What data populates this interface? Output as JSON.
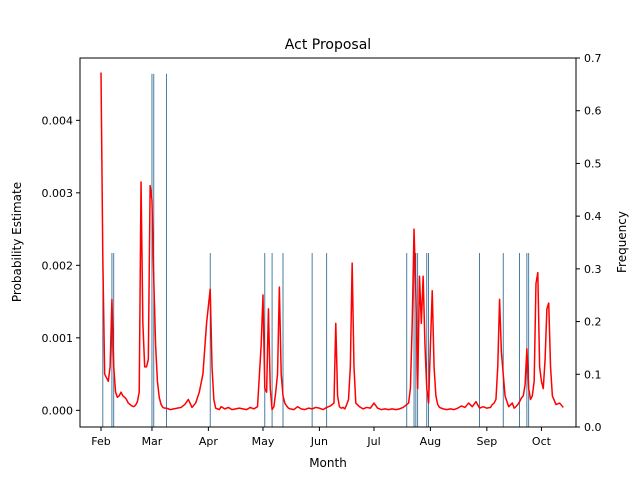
{
  "chart_data": {
    "type": "line",
    "title": "Act Proposal",
    "xlabel": "Month",
    "ylabel": "Probability Estimate",
    "y2label": "Frequency",
    "x_ticks": [
      "Feb",
      "Mar",
      "Apr",
      "May",
      "Jun",
      "Jul",
      "Aug",
      "Sep",
      "Oct"
    ],
    "ylim": [
      -0.00023,
      0.00486
    ],
    "y_ticks": [
      "0.000",
      "0.001",
      "0.002",
      "0.003",
      "0.004"
    ],
    "y2lim": [
      0.0,
      0.7
    ],
    "y2_ticks": [
      "0.0",
      "0.1",
      "0.2",
      "0.3",
      "0.4",
      "0.5",
      "0.6",
      "0.7"
    ],
    "grid": false,
    "colors": {
      "line": "#ff0000",
      "bars": "#1f5f8b",
      "axes": "#000000"
    },
    "series": [
      {
        "type": "line",
        "axis": "left",
        "x_day_of_year": [
          32,
          33,
          34,
          35,
          36,
          37,
          38,
          39,
          40,
          41,
          42,
          43,
          44,
          45,
          46,
          47,
          48,
          49,
          50,
          51,
          52,
          53,
          54,
          55,
          56,
          57,
          58,
          59,
          60,
          61,
          62,
          63,
          64,
          65,
          66,
          67,
          68,
          69,
          70,
          72,
          74,
          76,
          78,
          80,
          82,
          84,
          86,
          88,
          90,
          92,
          93,
          94,
          95,
          96,
          97,
          98,
          100,
          102,
          104,
          106,
          108,
          110,
          112,
          114,
          116,
          118,
          120,
          121,
          122,
          123,
          124,
          125,
          126,
          127,
          128,
          129,
          130,
          131,
          132,
          133,
          134,
          135,
          136,
          138,
          140,
          142,
          144,
          146,
          148,
          150,
          152,
          154,
          156,
          158,
          160,
          161,
          162,
          163,
          164,
          165,
          166,
          167,
          168,
          169,
          170,
          171,
          172,
          174,
          176,
          178,
          180,
          182,
          184,
          186,
          188,
          190,
          192,
          194,
          196,
          198,
          200,
          201,
          202,
          203,
          204,
          205,
          206,
          207,
          208,
          209,
          210,
          211,
          212,
          213,
          214,
          215,
          216,
          217,
          218,
          220,
          222,
          224,
          226,
          228,
          230,
          232,
          234,
          236,
          238,
          240,
          242,
          244,
          246,
          247,
          248,
          249,
          250,
          251,
          252,
          254,
          256,
          258,
          259,
          260,
          261,
          262,
          263,
          264,
          265,
          266,
          267,
          268,
          269,
          270,
          271,
          272,
          273,
          274,
          275,
          276,
          277,
          278,
          279,
          280,
          282,
          284,
          286
        ],
        "values": [
          0.00466,
          0.0021,
          0.0005,
          0.00045,
          0.0004,
          0.0006,
          0.00153,
          0.0006,
          0.00025,
          0.00018,
          0.0002,
          0.00025,
          0.0002,
          0.00018,
          0.00015,
          0.0001,
          8e-05,
          6e-05,
          5e-05,
          7e-05,
          0.00012,
          0.00025,
          0.00315,
          0.0012,
          0.0006,
          0.0006,
          0.0007,
          0.0031,
          0.0029,
          0.0018,
          0.0009,
          0.0004,
          0.00018,
          8e-05,
          4e-05,
          3e-05,
          3e-05,
          2e-05,
          1e-05,
          2e-05,
          3e-05,
          4e-05,
          8e-05,
          0.00015,
          4e-05,
          0.0001,
          0.00025,
          0.0005,
          0.0012,
          0.00167,
          0.0006,
          0.00015,
          3e-05,
          2e-05,
          1e-05,
          5e-05,
          2e-05,
          4e-05,
          1e-05,
          2e-05,
          3e-05,
          2e-05,
          1e-05,
          4e-05,
          2e-05,
          5e-05,
          0.0009,
          0.00159,
          0.0003,
          0.00025,
          0.0014,
          0.0003,
          1e-05,
          5e-05,
          0.00025,
          0.0005,
          0.0017,
          0.0005,
          0.0002,
          0.0001,
          6e-05,
          3e-05,
          2e-05,
          1e-05,
          5e-05,
          2e-05,
          1e-05,
          3e-05,
          2e-05,
          4e-05,
          3e-05,
          1e-05,
          4e-05,
          6e-05,
          0.0001,
          0.0012,
          0.0002,
          5e-05,
          3e-05,
          4e-05,
          2e-05,
          8e-05,
          0.00015,
          0.0006,
          0.00203,
          0.0006,
          0.0001,
          5e-05,
          2e-05,
          4e-05,
          3e-05,
          0.0001,
          3e-05,
          1e-05,
          2e-05,
          1e-05,
          2e-05,
          1e-05,
          2e-05,
          4e-05,
          8e-05,
          0.0001,
          0.0003,
          0.0012,
          0.0025,
          0.0016,
          0.0003,
          0.00185,
          0.0012,
          0.00185,
          0.0009,
          0.0003,
          0.0001,
          0.0009,
          0.00165,
          0.0006,
          0.0002,
          8e-05,
          4e-05,
          2e-05,
          1e-05,
          2e-05,
          1e-05,
          3e-05,
          6e-05,
          4e-05,
          0.0001,
          5e-05,
          0.00012,
          3e-05,
          5e-05,
          3e-05,
          4e-05,
          8e-05,
          0.0001,
          0.00015,
          0.0006,
          0.00153,
          0.0008,
          0.0002,
          5e-05,
          0.0001,
          3e-05,
          5e-05,
          8e-05,
          0.00012,
          0.00017,
          0.0002,
          0.00035,
          0.00085,
          0.0003,
          0.00015,
          0.0002,
          0.0004,
          0.00175,
          0.0019,
          0.0006,
          0.0004,
          0.0003,
          0.0007,
          0.0014,
          0.00148,
          0.0006,
          0.0002,
          8e-05,
          0.0001,
          4e-05,
          8e-05,
          3e-05,
          5e-05
        ]
      },
      {
        "type": "bar",
        "axis": "right",
        "x_day_of_year": [
          33,
          38,
          39,
          60,
          61,
          68,
          92,
          122,
          126,
          132,
          148,
          156,
          200,
          204,
          205,
          206,
          211,
          212,
          240,
          253,
          262,
          266,
          267
        ],
        "values": [
          0.33,
          0.33,
          0.33,
          0.67,
          0.67,
          0.67,
          0.33,
          0.33,
          0.33,
          0.33,
          0.33,
          0.33,
          0.33,
          0.33,
          0.33,
          0.33,
          0.33,
          0.33,
          0.33,
          0.33,
          0.33,
          0.33,
          0.33
        ]
      }
    ]
  }
}
